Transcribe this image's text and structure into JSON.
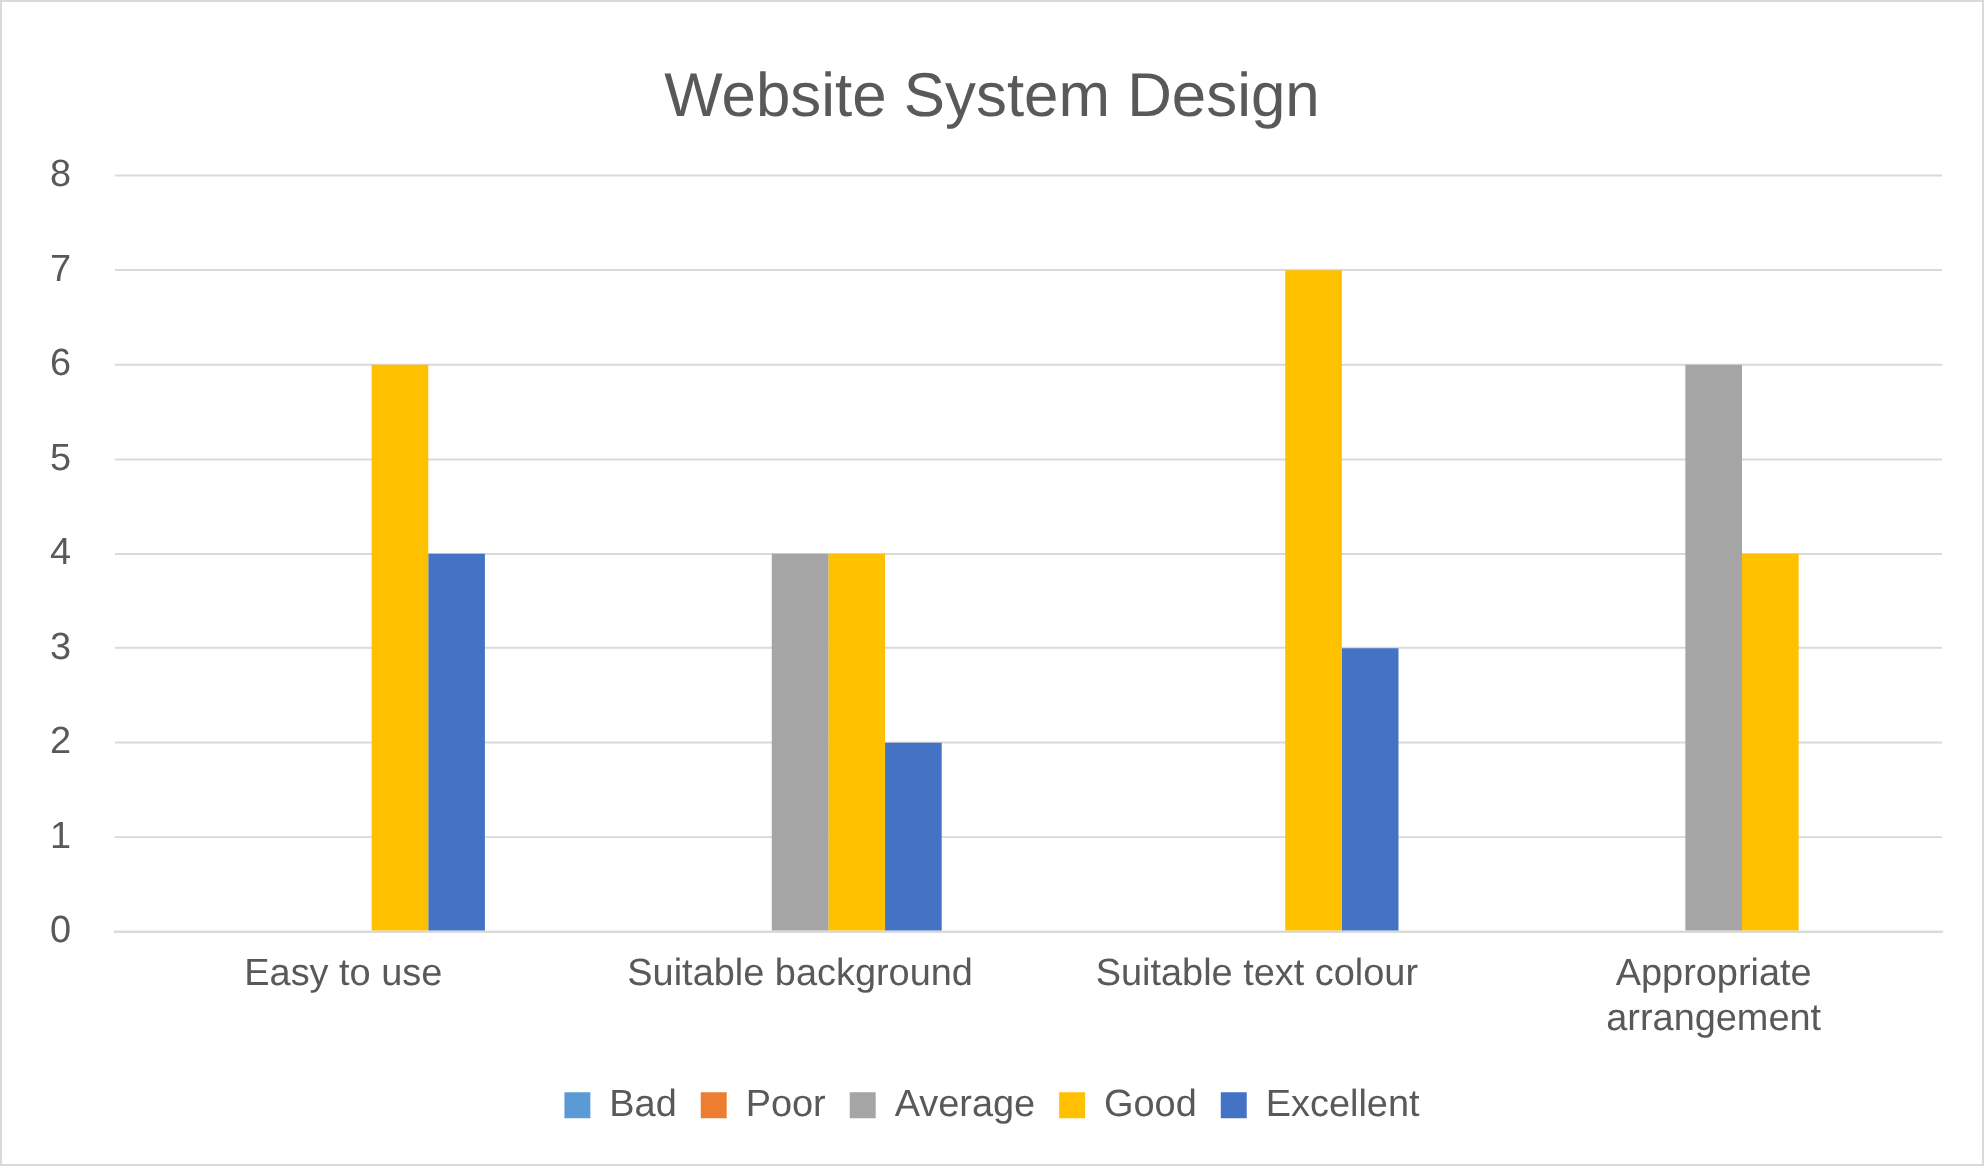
{
  "chart_data": {
    "type": "bar",
    "title": "Website System Design",
    "categories": [
      "Easy to use",
      "Suitable background",
      "Suitable text colour",
      "Appropriate arrangement"
    ],
    "series": [
      {
        "name": "Bad",
        "color": "#5b9bd5",
        "values": [
          0,
          0,
          0,
          0
        ]
      },
      {
        "name": "Poor",
        "color": "#ed7d31",
        "values": [
          0,
          0,
          0,
          0
        ]
      },
      {
        "name": "Average",
        "color": "#a5a5a5",
        "values": [
          0,
          4,
          0,
          6
        ]
      },
      {
        "name": "Good",
        "color": "#ffc000",
        "values": [
          6,
          4,
          7,
          4
        ]
      },
      {
        "name": "Excellent",
        "color": "#4472c4",
        "values": [
          4,
          2,
          3,
          0
        ]
      }
    ],
    "ylim": [
      0,
      8
    ],
    "yticks": [
      0,
      1,
      2,
      3,
      4,
      5,
      6,
      7,
      8
    ],
    "grid": "y",
    "legend": "bottom"
  }
}
